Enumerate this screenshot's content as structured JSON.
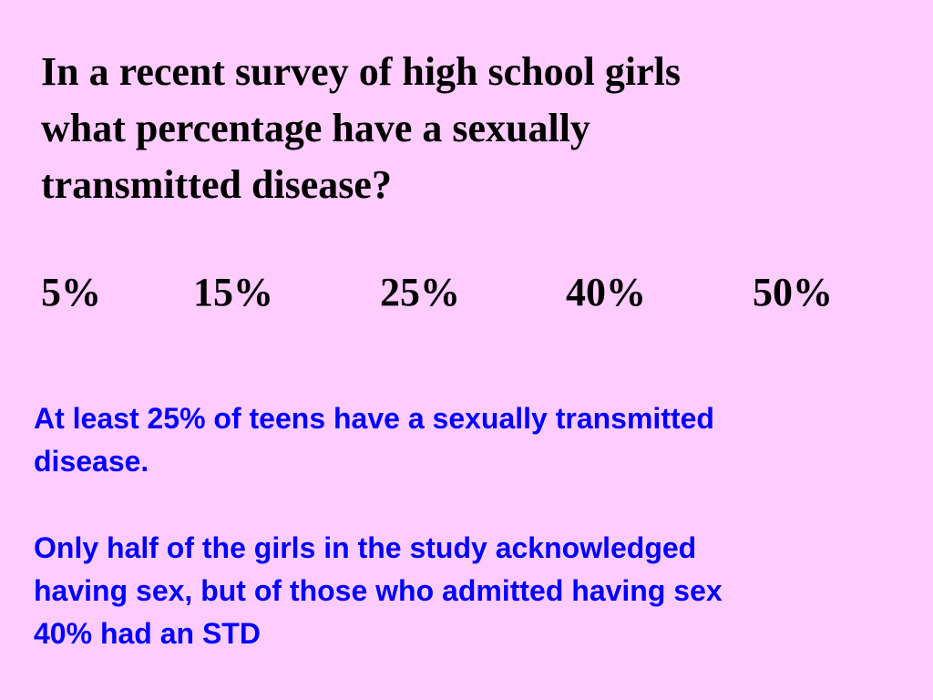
{
  "slide": {
    "background_color": "#ffccff",
    "question": {
      "lines": [
        "In a recent survey of high school girls",
        "what percentage have a sexually",
        "transmitted disease?"
      ]
    },
    "options": [
      "5%",
      "15%",
      "25%",
      "40%",
      "50%"
    ],
    "answer_1": {
      "lines": [
        "At least 25% of teens have a sexually transmitted",
        "disease."
      ]
    },
    "answer_2": {
      "lines": [
        "Only half of the girls in the study acknowledged",
        "having sex, but of those who admitted having sex",
        "40% had an STD"
      ]
    },
    "colors": {
      "question_text": "#000000",
      "answer_text": "#0000ff"
    }
  }
}
